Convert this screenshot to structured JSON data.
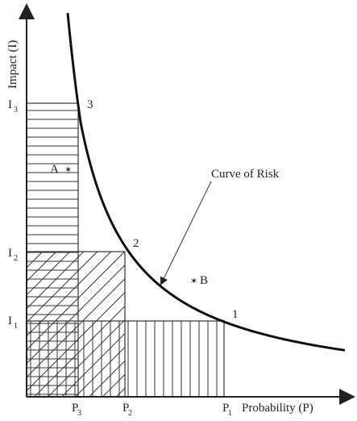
{
  "y_axis_label": "Impact (I)",
  "x_axis_label": "Probability (P)",
  "y_levels": [
    {
      "letter": "I",
      "sub": "1"
    },
    {
      "letter": "I",
      "sub": "2"
    },
    {
      "letter": "I",
      "sub": "3"
    }
  ],
  "x_levels": [
    {
      "letter": "P",
      "sub": "1"
    },
    {
      "letter": "P",
      "sub": "2"
    },
    {
      "letter": "P",
      "sub": "3"
    }
  ],
  "curve_points": [
    "1",
    "2",
    "3"
  ],
  "curve_label": "Curve of Risk",
  "markers": [
    "A",
    "B"
  ]
}
